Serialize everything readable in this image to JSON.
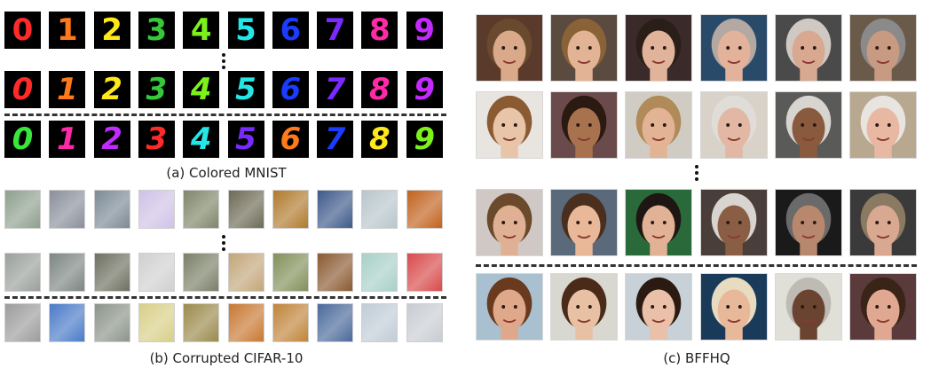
{
  "panels": {
    "mnist": {
      "caption": "(a) Colored MNIST",
      "rows": [
        {
          "digits": [
            "0",
            "1",
            "2",
            "3",
            "4",
            "5",
            "6",
            "7",
            "8",
            "9"
          ],
          "colors": [
            "#ff2a2a",
            "#ff7a1a",
            "#ffe81a",
            "#37c83a",
            "#7cf21a",
            "#25e6e6",
            "#1a3cff",
            "#7a2aff",
            "#ff2aa8",
            "#c32aff"
          ]
        },
        {
          "digits": [
            "0",
            "1",
            "2",
            "3",
            "4",
            "5",
            "6",
            "7",
            "8",
            "9"
          ],
          "colors": [
            "#ff2a2a",
            "#ff7a1a",
            "#ffe81a",
            "#37c83a",
            "#7cf21a",
            "#25e6e6",
            "#1a3cff",
            "#7a2aff",
            "#ff2aa8",
            "#c32aff"
          ]
        },
        {
          "digits": [
            "0",
            "1",
            "2",
            "3",
            "4",
            "5",
            "6",
            "7",
            "8",
            "9"
          ],
          "colors": [
            "#37e83a",
            "#ff2aa8",
            "#c32aff",
            "#ff2a2a",
            "#25e6e6",
            "#7a2aff",
            "#ff7a1a",
            "#1a3cff",
            "#ffe81a",
            "#7cf21a"
          ]
        }
      ]
    },
    "cifar": {
      "caption": "(b) Corrupted CIFAR-10",
      "rows": [
        [
          "#8ea08e",
          "#8a8f9a",
          "#7c8a95",
          "#cfc2e6",
          "#7f866a",
          "#6d6a55",
          "#b07a2e",
          "#3e5a8a",
          "#b8c6cc",
          "#c2621e"
        ],
        [
          "#9aa09c",
          "#7c8683",
          "#6e7060",
          "#d0d0d0",
          "#7a7f68",
          "#c3a67a",
          "#82905a",
          "#8a5a32",
          "#a8d0c8",
          "#d84a4a"
        ],
        [
          "#9c9c9c",
          "#4a7ac8",
          "#8c948a",
          "#d8cf88",
          "#9a8a4c",
          "#c87832",
          "#c0843a",
          "#4a6a9a",
          "#c0ccd6",
          "#c8ccd2"
        ]
      ]
    },
    "bffhq": {
      "caption": "(c) BFFHQ",
      "rows": [
        {
          "skin": [
            "#d9a98a",
            "#e2b394",
            "#e0b39a",
            "#e2b29a",
            "#d8a890",
            "#c89a82"
          ],
          "hair": [
            "#6a4a2e",
            "#8a6238",
            "#2a1e18",
            "#b4a8a2",
            "#d0c8c2",
            "#8a8a8a"
          ],
          "bg": [
            "#5a3a2a",
            "#5a4a40",
            "#3a2a2a",
            "#2a4a6a",
            "#4a4a4a",
            "#6a5a4a"
          ]
        },
        {
          "skin": [
            "#e8c4a8",
            "#a8724e",
            "#e2b394",
            "#e2b8a4",
            "#8a5a3e",
            "#e8b8a2"
          ],
          "hair": [
            "#8a5a32",
            "#2a1a12",
            "#b08a58",
            "#e0dcd8",
            "#d8d4d0",
            "#e8e4e0"
          ],
          "bg": [
            "#e8e4e0",
            "#6a4a4a",
            "#d0ccc4",
            "#d8d2c8",
            "#5a5a58",
            "#b8a890"
          ]
        },
        {
          "skin": [
            "#e0b094",
            "#e8b898",
            "#e2b296",
            "#8a5e44",
            "#b8886e",
            "#d8a890"
          ],
          "hair": [
            "#6a4a2a",
            "#4a2e1e",
            "#1e1612",
            "#d8d4d0",
            "#6a6a6a",
            "#8a7a62"
          ],
          "bg": [
            "#d0c8c4",
            "#5a6a7a",
            "#2a6a3a",
            "#4a3e3a",
            "#1a1a1a",
            "#3a3a3a"
          ]
        },
        {
          "skin": [
            "#e0a88a",
            "#e8c0a4",
            "#eac0a8",
            "#e8b89a",
            "#6a4430",
            "#e0a890"
          ],
          "hair": [
            "#6a3a1e",
            "#4a2a18",
            "#2a1a12",
            "#e8dcc0",
            "#bebab4",
            "#3a2418"
          ],
          "bg": [
            "#a8c0d0",
            "#d8d8d0",
            "#c8d0d8",
            "#1a3a5a",
            "#e0e0d8",
            "#5a3a3a"
          ]
        }
      ]
    }
  }
}
